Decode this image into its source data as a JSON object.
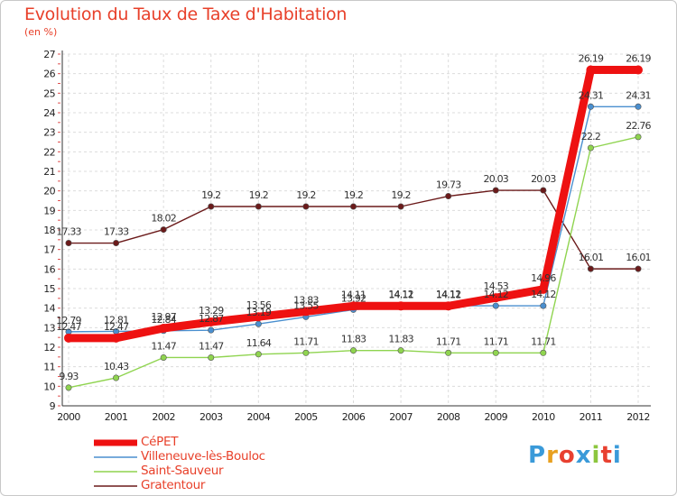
{
  "header": {
    "title": "Evolution du Taux de Taxe d'Habitation",
    "subtitle": "(en %)"
  },
  "brand": {
    "letters": [
      "P",
      "r",
      "o",
      "x",
      "i",
      "t",
      "i"
    ],
    "colors": [
      "#3a9ad9",
      "#e8a020",
      "#e84030",
      "#3a9ad9",
      "#8cc63e",
      "#e84030",
      "#3a9ad9"
    ]
  },
  "chart_data": {
    "type": "line",
    "title": "Evolution du Taux de Taxe d'Habitation",
    "subtitle": "(en %)",
    "xlabel": "",
    "ylabel": "(en %)",
    "x": [
      "2000",
      "2001",
      "2002",
      "2003",
      "2004",
      "2005",
      "2006",
      "2007",
      "2008",
      "2009",
      "2010",
      "2011",
      "2012"
    ],
    "ylim": [
      9,
      27
    ],
    "yticks": [
      9,
      10,
      11,
      12,
      13,
      14,
      15,
      16,
      17,
      18,
      19,
      20,
      21,
      22,
      23,
      24,
      25,
      26,
      27
    ],
    "grid": true,
    "legend_position": "bottom-left",
    "series": [
      {
        "name": "Gratentour",
        "color": "#6b1a1a",
        "values": [
          17.33,
          17.33,
          18.02,
          19.2,
          19.2,
          19.2,
          19.2,
          19.2,
          19.73,
          20.03,
          20.03,
          16.01,
          16.01
        ],
        "labels": [
          "17.33",
          "17.33",
          "18.02",
          "19.2",
          "19.2",
          "19.2",
          "19.2",
          "19.2",
          "19.73",
          "20.03",
          "20.03",
          "16.01",
          "16.01"
        ]
      },
      {
        "name": "Saint-Sauveur",
        "color": "#8fd44f",
        "values": [
          9.93,
          10.43,
          11.47,
          11.47,
          11.64,
          11.71,
          11.83,
          11.83,
          11.71,
          11.71,
          11.71,
          22.2,
          22.76
        ],
        "labels": [
          "9.93",
          "10.43",
          "11.47",
          "11.47",
          "11.64",
          "11.71",
          "11.83",
          "11.83",
          "11.71",
          "11.71",
          "11.71",
          "22.2",
          "22.76"
        ]
      },
      {
        "name": "Villeneuve-lès-Bouloc",
        "color": "#4a8fcf",
        "values": [
          12.79,
          12.81,
          12.84,
          12.87,
          13.19,
          13.55,
          13.92,
          14.12,
          14.12,
          14.12,
          14.12,
          24.31,
          24.31
        ],
        "labels": [
          "12.79",
          "12.81",
          "12.84",
          "12.87",
          "13.19",
          "13.55",
          "13.92",
          "14.12",
          "14.12",
          "14.12",
          "14.12",
          "24.31",
          "24.31"
        ]
      },
      {
        "name": "CéPET",
        "color": "#ee1111",
        "values": [
          12.47,
          12.47,
          12.97,
          13.29,
          13.56,
          13.83,
          14.11,
          14.11,
          14.11,
          14.53,
          14.96,
          26.19,
          26.19
        ],
        "labels": [
          "12.47",
          "12.47",
          "12.97",
          "13.29",
          "13.56",
          "13.83",
          "14.11",
          "14.11",
          "14.11",
          "14.53",
          "14.96",
          "26.19",
          "26.19"
        ]
      }
    ]
  },
  "legend": [
    {
      "label": "CéPET",
      "color": "#ee1111",
      "thick": true
    },
    {
      "label": "Villeneuve-lès-Bouloc",
      "color": "#4a8fcf",
      "thick": false
    },
    {
      "label": "Saint-Sauveur",
      "color": "#8fd44f",
      "thick": false
    },
    {
      "label": "Gratentour",
      "color": "#6b1a1a",
      "thick": false
    }
  ]
}
